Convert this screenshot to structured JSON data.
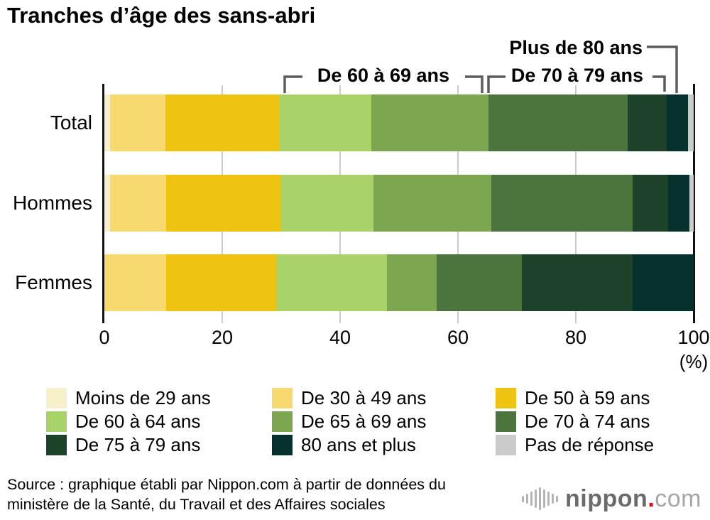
{
  "title": "Tranches d’âge des sans-abri",
  "annotations": {
    "range_60_69": "De 60 à 69 ans",
    "range_70_79": "De 70 à 79 ans",
    "range_80_plus": "Plus de 80 ans"
  },
  "axis": {
    "ticks": [
      "0",
      "20",
      "40",
      "60",
      "80",
      "100"
    ],
    "unit": "(%)"
  },
  "chart_data": {
    "type": "bar",
    "stacked": true,
    "orientation": "horizontal",
    "xlim": [
      0,
      100
    ],
    "unit": "%",
    "grid": "vertical-gray",
    "legend_position": "bottom",
    "categories": [
      "Total",
      "Hommes",
      "Femmes"
    ],
    "series": [
      {
        "name": "Moins de 29 ans",
        "color": "#F7F0CB",
        "values": [
          1.0,
          1.0,
          0
        ]
      },
      {
        "name": "De 30 à 49 ans",
        "color": "#F7D96F",
        "values": [
          9.4,
          9.5,
          10.5
        ]
      },
      {
        "name": "De 50 à 59 ans",
        "color": "#EEC312",
        "values": [
          19.3,
          19.5,
          18.7
        ]
      },
      {
        "name": "De 60 à 64 ans",
        "color": "#A9D268",
        "values": [
          15.6,
          15.7,
          18.8
        ]
      },
      {
        "name": "De 65 à 69 ans",
        "color": "#7CA64F",
        "values": [
          19.9,
          20.0,
          8.4
        ]
      },
      {
        "name": "De 70 à 74 ans",
        "color": "#4B743E",
        "values": [
          23.6,
          23.9,
          14.5
        ]
      },
      {
        "name": "De 75 à 79 ans",
        "color": "#1C4329",
        "values": [
          6.6,
          6.1,
          18.8
        ]
      },
      {
        "name": "80 ans et plus",
        "color": "#06302B",
        "values": [
          3.6,
          3.6,
          10.3
        ]
      },
      {
        "name": "Pas de réponse",
        "color": "#CBCBCB",
        "values": [
          1.0,
          0.7,
          0
        ]
      }
    ]
  },
  "source_text": "Source : graphique établi par Nippon.com à partir de données du\nministère de la Santé, du Travail et des Affaires sociales",
  "logo": {
    "name": "nippon",
    "dot": ".",
    "tld": "com"
  },
  "colors": {
    "accent_red": "#e60012",
    "bracket_gray": "#5c5c5c",
    "grid_gray": "#cccccc",
    "frame_black": "#111111"
  }
}
